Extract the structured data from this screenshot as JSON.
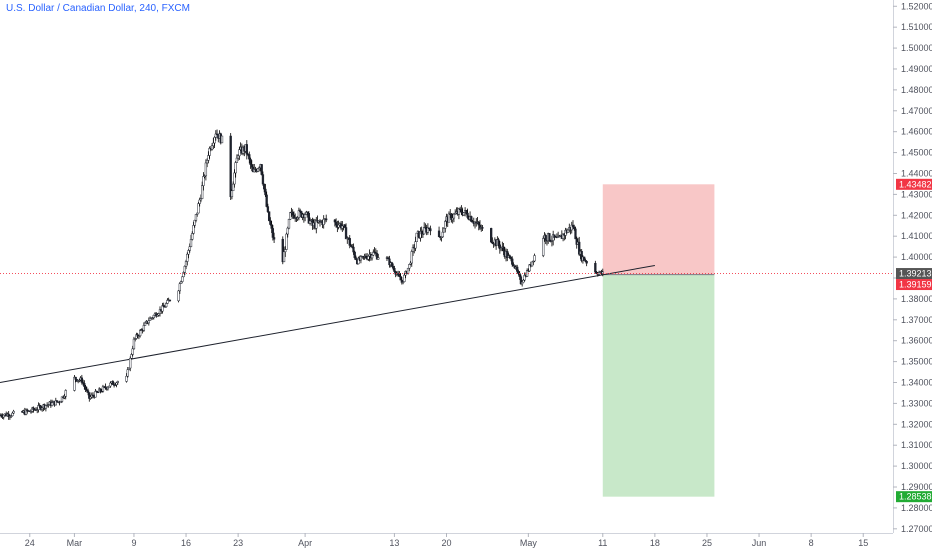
{
  "header": {
    "title": "U.S. Dollar / Canadian Dollar, 240, FXCM"
  },
  "colors": {
    "up": "#26a69a",
    "down": "#ef5350",
    "wick": "#000000",
    "candle_body": "#1e222d",
    "axis_text": "#50535e",
    "title": "#2962ff",
    "stop_zone": "#f8c7c7",
    "target_zone": "#c8e8c9",
    "current_price": "#555555",
    "entry_price": "#f23645",
    "stop_price": "#f23645",
    "target_price": "#22ab34",
    "trendline": "#1e222d"
  },
  "chart_data": {
    "type": "candlestick",
    "title": "U.S. Dollar / Canadian Dollar, 240, FXCM",
    "ylim": [
      1.268,
      1.523
    ],
    "y_ticks": [
      "1.27000",
      "1.28000",
      "1.29000",
      "1.30000",
      "1.31000",
      "1.32000",
      "1.33000",
      "1.34000",
      "1.35000",
      "1.36000",
      "1.37000",
      "1.38000",
      "1.39000",
      "1.40000",
      "1.41000",
      "1.42000",
      "1.43000",
      "1.44000",
      "1.45000",
      "1.46000",
      "1.47000",
      "1.48000",
      "1.49000",
      "1.50000",
      "1.51000",
      "1.52000"
    ],
    "x_ticks": [
      {
        "label": "24",
        "date": "2020-02-24"
      },
      {
        "label": "Mar",
        "date": "2020-03-01"
      },
      {
        "label": "9",
        "date": "2020-03-09"
      },
      {
        "label": "16",
        "date": "2020-03-16"
      },
      {
        "label": "23",
        "date": "2020-03-23"
      },
      {
        "label": "Apr",
        "date": "2020-04-01"
      },
      {
        "label": "13",
        "date": "2020-04-13"
      },
      {
        "label": "20",
        "date": "2020-04-20"
      },
      {
        "label": "May",
        "date": "2020-05-01"
      },
      {
        "label": "11",
        "date": "2020-05-11"
      },
      {
        "label": "18",
        "date": "2020-05-18"
      },
      {
        "label": "25",
        "date": "2020-05-25"
      },
      {
        "label": "Jun",
        "date": "2020-06-01"
      },
      {
        "label": "8",
        "date": "2020-06-08"
      },
      {
        "label": "15",
        "date": "2020-06-15"
      }
    ],
    "x_range": [
      "2020-02-20",
      "2020-06-19"
    ],
    "close_path": [
      [
        "2020-02-20",
        1.3245
      ],
      [
        "2020-02-22",
        1.325
      ],
      [
        "2020-02-24",
        1.3262
      ],
      [
        "2020-02-26",
        1.329
      ],
      [
        "2020-02-28",
        1.331
      ],
      [
        "2020-03-01",
        1.342
      ],
      [
        "2020-03-02",
        1.341
      ],
      [
        "2020-03-03",
        1.3325
      ],
      [
        "2020-03-04",
        1.335
      ],
      [
        "2020-03-06",
        1.3395
      ],
      [
        "2020-03-08",
        1.342
      ],
      [
        "2020-03-09",
        1.36
      ],
      [
        "2020-03-11",
        1.37
      ],
      [
        "2020-03-13",
        1.376
      ],
      [
        "2020-03-15",
        1.385
      ],
      [
        "2020-03-16",
        1.398
      ],
      [
        "2020-03-18",
        1.43
      ],
      [
        "2020-03-19",
        1.45
      ],
      [
        "2020-03-20",
        1.46
      ],
      [
        "2020-03-21",
        1.455
      ],
      [
        "2020-03-22",
        1.43
      ],
      [
        "2020-03-23",
        1.45
      ],
      [
        "2020-03-24",
        1.452
      ],
      [
        "2020-03-25",
        1.44
      ],
      [
        "2020-03-26",
        1.445
      ],
      [
        "2020-03-27",
        1.42
      ],
      [
        "2020-03-28",
        1.405
      ],
      [
        "2020-03-29",
        1.398
      ],
      [
        "2020-03-30",
        1.42
      ],
      [
        "2020-04-01",
        1.421
      ],
      [
        "2020-04-02",
        1.415
      ],
      [
        "2020-04-04",
        1.418
      ],
      [
        "2020-04-06",
        1.415
      ],
      [
        "2020-04-08",
        1.398
      ],
      [
        "2020-04-10",
        1.402
      ],
      [
        "2020-04-12",
        1.399
      ],
      [
        "2020-04-13",
        1.394
      ],
      [
        "2020-04-14",
        1.388
      ],
      [
        "2020-04-15",
        1.396
      ],
      [
        "2020-04-16",
        1.41
      ],
      [
        "2020-04-18",
        1.415
      ],
      [
        "2020-04-19",
        1.408
      ],
      [
        "2020-04-20",
        1.418
      ],
      [
        "2020-04-22",
        1.422
      ],
      [
        "2020-04-23",
        1.42
      ],
      [
        "2020-04-25",
        1.412
      ],
      [
        "2020-04-27",
        1.406
      ],
      [
        "2020-04-29",
        1.397
      ],
      [
        "2020-04-30",
        1.388
      ],
      [
        "2020-05-01",
        1.394
      ],
      [
        "2020-05-02",
        1.402
      ],
      [
        "2020-05-03",
        1.41
      ],
      [
        "2020-05-05",
        1.408
      ],
      [
        "2020-05-06",
        1.412
      ],
      [
        "2020-05-07",
        1.415
      ],
      [
        "2020-05-08",
        1.401
      ],
      [
        "2020-05-09",
        1.397
      ],
      [
        "2020-05-10",
        1.393
      ],
      [
        "2020-05-11",
        1.3921
      ]
    ],
    "trendline": [
      [
        "2020-02-20",
        1.34
      ],
      [
        "2020-05-18",
        1.396
      ]
    ],
    "position": {
      "entry_date": "2020-05-11",
      "end_date": "2020-05-26",
      "entry": 1.39159,
      "stop": 1.43482,
      "target": 1.28538
    },
    "price_labels": {
      "stop": "1.43482",
      "current": "1.39213",
      "entry": "1.39159",
      "target": "1.28538"
    }
  }
}
